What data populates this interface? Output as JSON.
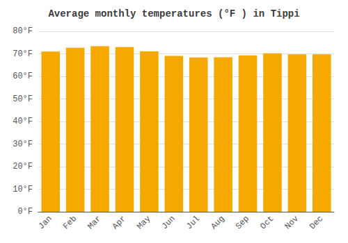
{
  "chart_data": {
    "type": "bar",
    "title": "Average monthly temperatures (°F ) in Tippi",
    "categories": [
      "Jan",
      "Feb",
      "Mar",
      "Apr",
      "May",
      "Jun",
      "Jul",
      "Aug",
      "Sep",
      "Oct",
      "Nov",
      "Dec"
    ],
    "values": [
      71.0,
      72.7,
      73.4,
      73.0,
      71.1,
      69.1,
      68.4,
      68.5,
      69.3,
      70.2,
      69.8,
      69.8
    ],
    "color": "#F5A800",
    "ylim": [
      0,
      80
    ],
    "yticks": [
      {
        "value": 0,
        "label": "0°F"
      },
      {
        "value": 10,
        "label": "10°F"
      },
      {
        "value": 20,
        "label": "20°F"
      },
      {
        "value": 30,
        "label": "30°F"
      },
      {
        "value": 40,
        "label": "40°F"
      },
      {
        "value": 50,
        "label": "50°F"
      },
      {
        "value": 60,
        "label": "60°F"
      },
      {
        "value": 70,
        "label": "70°F"
      },
      {
        "value": 80,
        "label": "80°F"
      }
    ],
    "grid": true
  }
}
